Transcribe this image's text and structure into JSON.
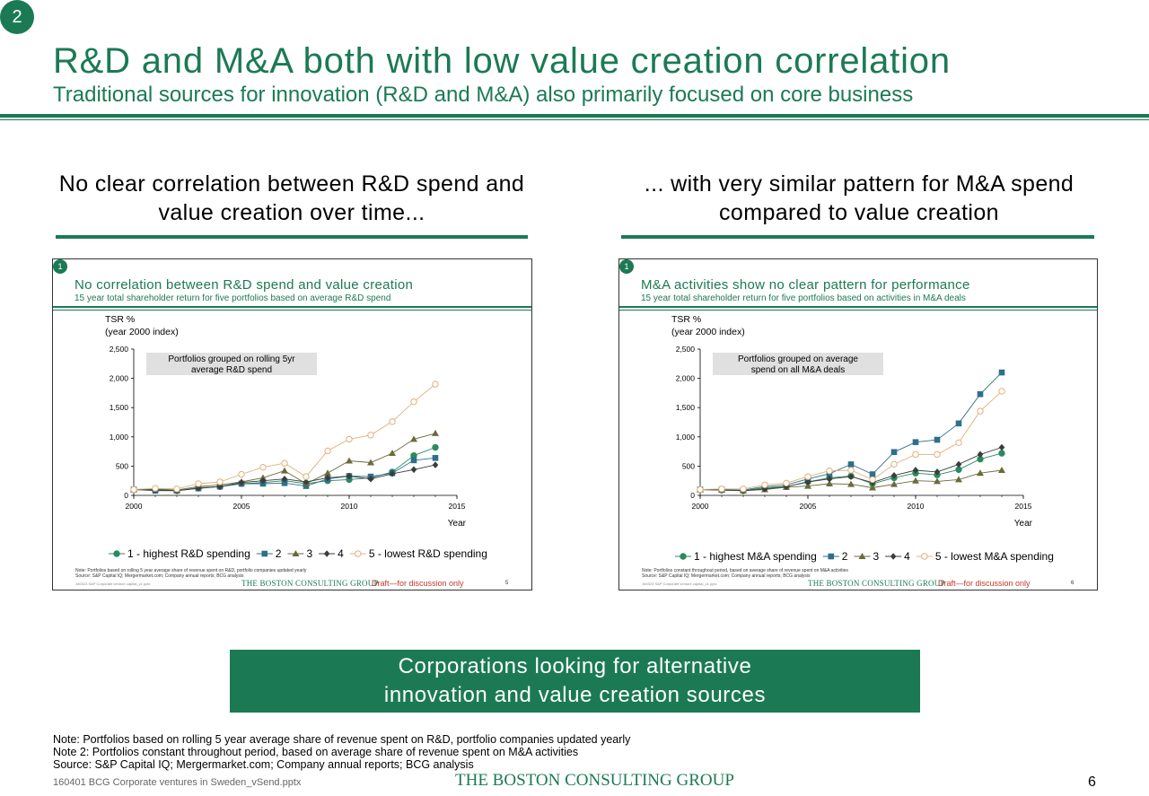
{
  "slide": {
    "badge": "2",
    "title": "R&D and M&A both with low value creation correlation",
    "subtitle": "Traditional sources for innovation (R&D and M&A) also primarily focused on core business",
    "left_heading": "No clear correlation between R&D spend and value creation over time...",
    "right_heading": "... with very similar pattern for M&A spend compared to value creation",
    "callout": "Corporations looking for alternative innovation and value creation sources",
    "notes": [
      "Note: Portfolios based on rolling 5 year average share of revenue spent on R&D, portfolio companies updated yearly",
      "Note 2: Portfolios constant throughout period, based on average share of revenue spent on M&A activities",
      "Source: S&P Capital IQ; Mergermarket.com; Company annual reports; BCG analysis"
    ],
    "footer_file": "160401 BCG Corporate ventures in Sweden_vSend.pptx",
    "footer_brand": "THE BOSTON CONSULTING GROUP",
    "page_number": "6"
  },
  "colors": {
    "brand_green": "#1b7a54",
    "s1": "#2a8a60",
    "s2": "#2f6f89",
    "s3": "#6b6a3c",
    "s4": "#3b3d3d",
    "s5": "#e2b07a"
  },
  "panels": [
    {
      "badge": "1",
      "title": "No correlation between R&D spend and value creation",
      "subtitle": "15 year total shareholder return for five portfolios based on average R&D spend",
      "ylabel1": "TSR %",
      "ylabel2": "(year 2000 index)",
      "box_line1": "Portfolios grouped on rolling 5yr",
      "box_line2": "average R&D spend",
      "xaxis_label": "Year",
      "note1": "Note: Portfolios based on rolling 5 year average share of revenue spent on R&D, portfolio companies updated yearly",
      "note2": "Source: S&P Capital IQ; Mergermarket.com; Company annual reports; BCG analysis",
      "file": "160323 S&P Corporate venture capital_v1.pptx",
      "brand": "THE BOSTON CONSULTING GROUP",
      "draft": "Draft—for discussion only",
      "page": "5"
    },
    {
      "badge": "1",
      "title": "M&A activities show no clear pattern for performance",
      "subtitle": "15 year total shareholder return for five portfolios based on activities in M&A deals",
      "ylabel1": "TSR %",
      "ylabel2": "(year 2000 index)",
      "box_line1": "Portfolios grouped on average",
      "box_line2": "spend on all M&A deals",
      "xaxis_label": "Year",
      "note1": "Note: Portfolios constant throughout period, based on average share of revenue spent on M&A activities",
      "note2": "Source: S&P Capital IQ; Mergermarket.com; Company annual reports; BCG analysis",
      "file": "160323 S&P Corporate venture capital_v1.pptx",
      "brand": "THE BOSTON CONSULTING GROUP",
      "draft": "Draft—for discussion only",
      "page": "6"
    }
  ],
  "chart_data": [
    {
      "type": "line",
      "title": "No correlation between R&D spend and value creation",
      "ylabel": "TSR % (year 2000 index)",
      "xlabel": "Year",
      "xlim": [
        2000,
        2015
      ],
      "ylim": [
        0,
        2500
      ],
      "xticks": [
        "2000",
        "2005",
        "2010",
        "2015"
      ],
      "yticks": [
        "0",
        "500",
        "1,000",
        "1,500",
        "2,000",
        "2,500"
      ],
      "legend": "bottom",
      "x": [
        2000,
        2001,
        2002,
        2003,
        2004,
        2005,
        2006,
        2007,
        2008,
        2009,
        2010,
        2011,
        2012,
        2013,
        2014
      ],
      "series": [
        {
          "name": "1 - highest R&D spending",
          "marker": "circle-filled",
          "values": [
            100,
            100,
            80,
            130,
            150,
            200,
            220,
            250,
            200,
            250,
            270,
            300,
            400,
            680,
            820
          ]
        },
        {
          "name": "2",
          "marker": "square",
          "values": [
            100,
            80,
            80,
            120,
            150,
            200,
            200,
            210,
            160,
            280,
            330,
            320,
            380,
            600,
            640
          ]
        },
        {
          "name": "3",
          "marker": "triangle",
          "values": [
            100,
            110,
            90,
            150,
            180,
            230,
            300,
            420,
            200,
            380,
            590,
            560,
            720,
            960,
            1060
          ]
        },
        {
          "name": "4",
          "marker": "diamond",
          "values": [
            100,
            90,
            80,
            120,
            150,
            220,
            250,
            280,
            230,
            300,
            330,
            280,
            370,
            440,
            520
          ]
        },
        {
          "name": "5 - lowest R&D spending",
          "marker": "circle-open",
          "values": [
            100,
            120,
            110,
            200,
            230,
            360,
            480,
            550,
            320,
            760,
            960,
            1030,
            1260,
            1600,
            1900
          ]
        }
      ]
    },
    {
      "type": "line",
      "title": "M&A activities show no clear pattern for performance",
      "ylabel": "TSR % (year 2000 index)",
      "xlabel": "Year",
      "xlim": [
        2000,
        2015
      ],
      "ylim": [
        0,
        2500
      ],
      "xticks": [
        "2000",
        "2005",
        "2010",
        "2015"
      ],
      "yticks": [
        "0",
        "500",
        "1,000",
        "1,500",
        "2,000",
        "2,500"
      ],
      "legend": "bottom",
      "x": [
        2000,
        2001,
        2002,
        2003,
        2004,
        2005,
        2006,
        2007,
        2008,
        2009,
        2010,
        2011,
        2012,
        2013,
        2014
      ],
      "series": [
        {
          "name": "1 - highest M&A spending",
          "marker": "circle-filled",
          "values": [
            100,
            90,
            80,
            130,
            150,
            230,
            300,
            330,
            200,
            300,
            380,
            350,
            440,
            620,
            720
          ]
        },
        {
          "name": "2",
          "marker": "square",
          "values": [
            100,
            100,
            90,
            150,
            180,
            280,
            370,
            530,
            360,
            740,
            910,
            950,
            1230,
            1730,
            2100
          ]
        },
        {
          "name": "3",
          "marker": "triangle",
          "values": [
            100,
            90,
            80,
            100,
            140,
            160,
            200,
            190,
            130,
            190,
            250,
            240,
            270,
            380,
            430
          ]
        },
        {
          "name": "4",
          "marker": "diamond",
          "values": [
            100,
            90,
            80,
            110,
            150,
            230,
            280,
            320,
            220,
            340,
            430,
            400,
            530,
            700,
            820
          ]
        },
        {
          "name": "5 - lowest M&A spending",
          "marker": "circle-open",
          "values": [
            100,
            110,
            110,
            180,
            210,
            320,
            420,
            430,
            270,
            530,
            700,
            700,
            900,
            1440,
            1780
          ]
        }
      ]
    }
  ]
}
